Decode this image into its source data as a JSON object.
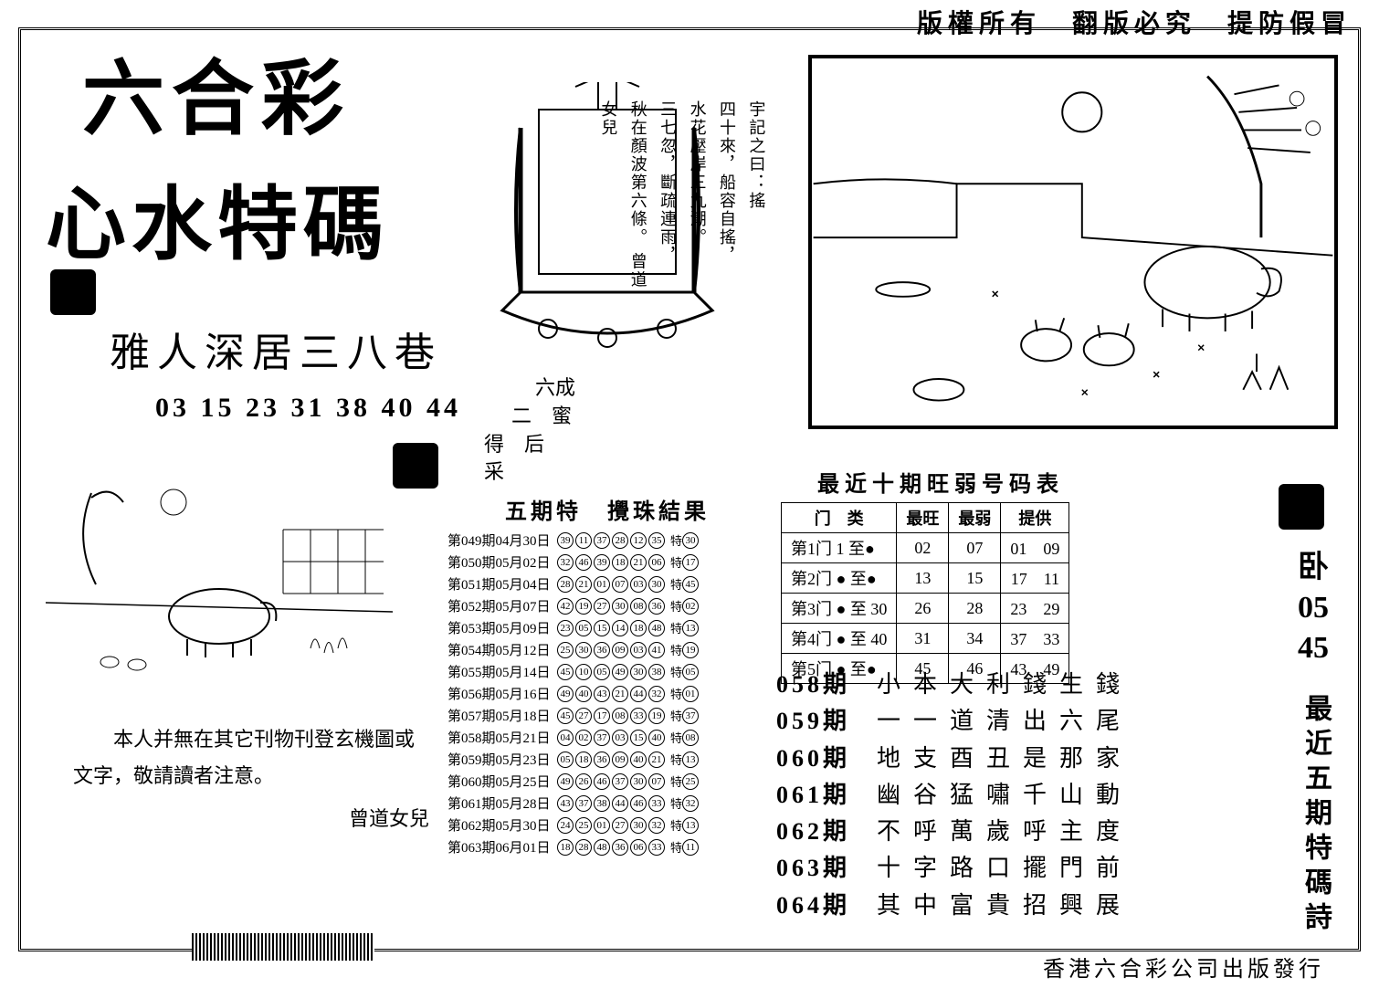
{
  "header": {
    "copyright": "版權所有　翻版必究　提防假冒"
  },
  "footer": {
    "publisher": "香港六合彩公司出版發行"
  },
  "title": {
    "line1": "六合彩",
    "line2": "心水特碼"
  },
  "riddle": {
    "text": "雅人深居三八巷",
    "numbers": "03 15 23 31 38 40 44"
  },
  "ship_poem": {
    "header": "宇記之曰：搖",
    "lines": "四十來，船容自搖，\n水花壓岸三九潮。\n三七忽，斷疏連雨，\n秋在顏波第六條。",
    "signature": "曾道女兒"
  },
  "decor": {
    "line1": "六成",
    "line2": "二　蜜",
    "line3": "得　后",
    "line4": "采"
  },
  "disclaimer": {
    "body": "　　本人并無在其它刊物刊登玄機圖或文字，敬請讀者注意。",
    "signature": "曾道女兒"
  },
  "draws": {
    "title": "五期特　攪珠結果",
    "rows": [
      {
        "issue": "第049期04月30日",
        "balls": [
          "39",
          "11",
          "37",
          "28",
          "12",
          "35"
        ],
        "sp": "30"
      },
      {
        "issue": "第050期05月02日",
        "balls": [
          "32",
          "46",
          "39",
          "18",
          "21",
          "06"
        ],
        "sp": "17"
      },
      {
        "issue": "第051期05月04日",
        "balls": [
          "28",
          "21",
          "01",
          "07",
          "03",
          "30"
        ],
        "sp": "45"
      },
      {
        "issue": "第052期05月07日",
        "balls": [
          "42",
          "19",
          "27",
          "30",
          "08",
          "36"
        ],
        "sp": "02"
      },
      {
        "issue": "第053期05月09日",
        "balls": [
          "23",
          "05",
          "15",
          "14",
          "18",
          "48"
        ],
        "sp": "13"
      },
      {
        "issue": "第054期05月12日",
        "balls": [
          "25",
          "30",
          "36",
          "09",
          "03",
          "41"
        ],
        "sp": "19"
      },
      {
        "issue": "第055期05月14日",
        "balls": [
          "45",
          "10",
          "05",
          "49",
          "30",
          "38"
        ],
        "sp": "05"
      },
      {
        "issue": "第056期05月16日",
        "balls": [
          "49",
          "40",
          "43",
          "21",
          "44",
          "32"
        ],
        "sp": "01"
      },
      {
        "issue": "第057期05月18日",
        "balls": [
          "45",
          "27",
          "17",
          "08",
          "33",
          "19"
        ],
        "sp": "37"
      },
      {
        "issue": "第058期05月21日",
        "balls": [
          "04",
          "02",
          "37",
          "03",
          "15",
          "40"
        ],
        "sp": "08"
      },
      {
        "issue": "第059期05月23日",
        "balls": [
          "05",
          "18",
          "36",
          "09",
          "40",
          "21"
        ],
        "sp": "13"
      },
      {
        "issue": "第060期05月25日",
        "balls": [
          "49",
          "26",
          "46",
          "37",
          "30",
          "07"
        ],
        "sp": "25"
      },
      {
        "issue": "第061期05月28日",
        "balls": [
          "43",
          "37",
          "38",
          "44",
          "46",
          "33"
        ],
        "sp": "32"
      },
      {
        "issue": "第062期05月30日",
        "balls": [
          "24",
          "25",
          "01",
          "27",
          "30",
          "32"
        ],
        "sp": "13"
      },
      {
        "issue": "第063期06月01日",
        "balls": [
          "18",
          "28",
          "48",
          "36",
          "06",
          "33"
        ],
        "sp": "11"
      }
    ]
  },
  "rank_table": {
    "title": "最近十期旺弱号码表",
    "headers": [
      "门　类",
      "最旺",
      "最弱",
      "提供"
    ],
    "rows": [
      {
        "gate": "第1门 1 至●",
        "strong": "02",
        "weak": "07",
        "provide": "01　09"
      },
      {
        "gate": "第2门 ● 至●",
        "strong": "13",
        "weak": "15",
        "provide": "17　11"
      },
      {
        "gate": "第3门 ● 至 30",
        "strong": "26",
        "weak": "28",
        "provide": "23　29"
      },
      {
        "gate": "第4门 ● 至 40",
        "strong": "31",
        "weak": "34",
        "provide": "37　33"
      },
      {
        "gate": "第5门 ● 至●",
        "strong": "45",
        "weak": "46",
        "provide": "43　49"
      }
    ]
  },
  "poems": [
    {
      "issue": "058期",
      "text": "小本大利錢生錢"
    },
    {
      "issue": "059期",
      "text": "一一道清出六尾"
    },
    {
      "issue": "060期",
      "text": "地支酉丑是那家"
    },
    {
      "issue": "061期",
      "text": "幽谷猛嘯千山動"
    },
    {
      "issue": "062期",
      "text": "不呼萬歲呼主度"
    },
    {
      "issue": "063期",
      "text": "十字路口擺門前"
    },
    {
      "issue": "064期",
      "text": "其中富貴招興展"
    }
  ],
  "side": {
    "kong": "卧",
    "n1": "05",
    "n2": "45",
    "label": "最近五期特碼詩"
  }
}
